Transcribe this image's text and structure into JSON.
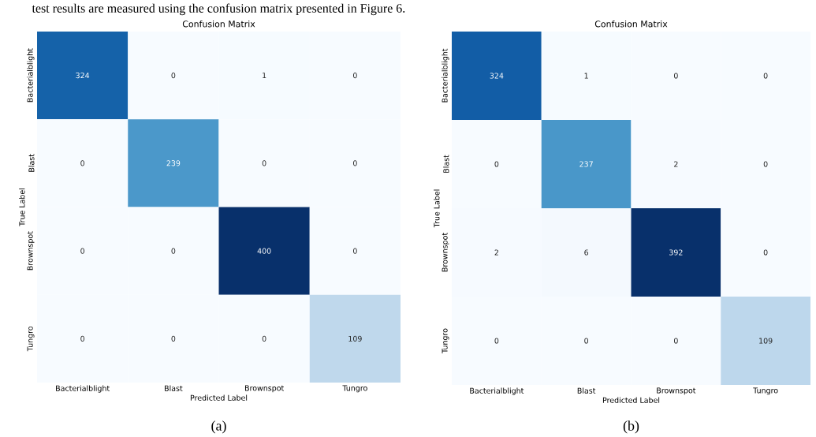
{
  "chart_data": [
    {
      "type": "heatmap",
      "title": "Confusion Matrix",
      "xlabel": "Predicted Label",
      "ylabel": "True Label",
      "categories": [
        "Bacterialblight",
        "Blast",
        "Brownspot",
        "Tungro"
      ],
      "y_categories": [
        "Bacterialblight",
        "Blast",
        "Brownspot",
        "Tungro"
      ],
      "cells": [
        [
          324,
          0,
          1,
          0
        ],
        [
          0,
          239,
          0,
          0
        ],
        [
          0,
          0,
          400,
          0
        ],
        [
          0,
          0,
          0,
          109
        ]
      ],
      "data_labels": true,
      "annotations": [
        "test results are measured using the confusion matrix presented in Figure 6.",
        "(a)"
      ]
    },
    {
      "type": "heatmap",
      "title": "Confusion Matrix",
      "xlabel": "Predicted Label",
      "ylabel": "True Label",
      "categories": [
        "Bacterialblight",
        "Blast",
        "Brownspot",
        "Tungro"
      ],
      "y_categories": [
        "Bacterialblight",
        "Blast",
        "Brownspot",
        "Tungro"
      ],
      "cells": [
        [
          324,
          1,
          0,
          0
        ],
        [
          0,
          237,
          2,
          0
        ],
        [
          2,
          6,
          392,
          0
        ],
        [
          0,
          0,
          0,
          109
        ]
      ],
      "data_labels": true,
      "annotations": [
        "(b)"
      ]
    }
  ]
}
